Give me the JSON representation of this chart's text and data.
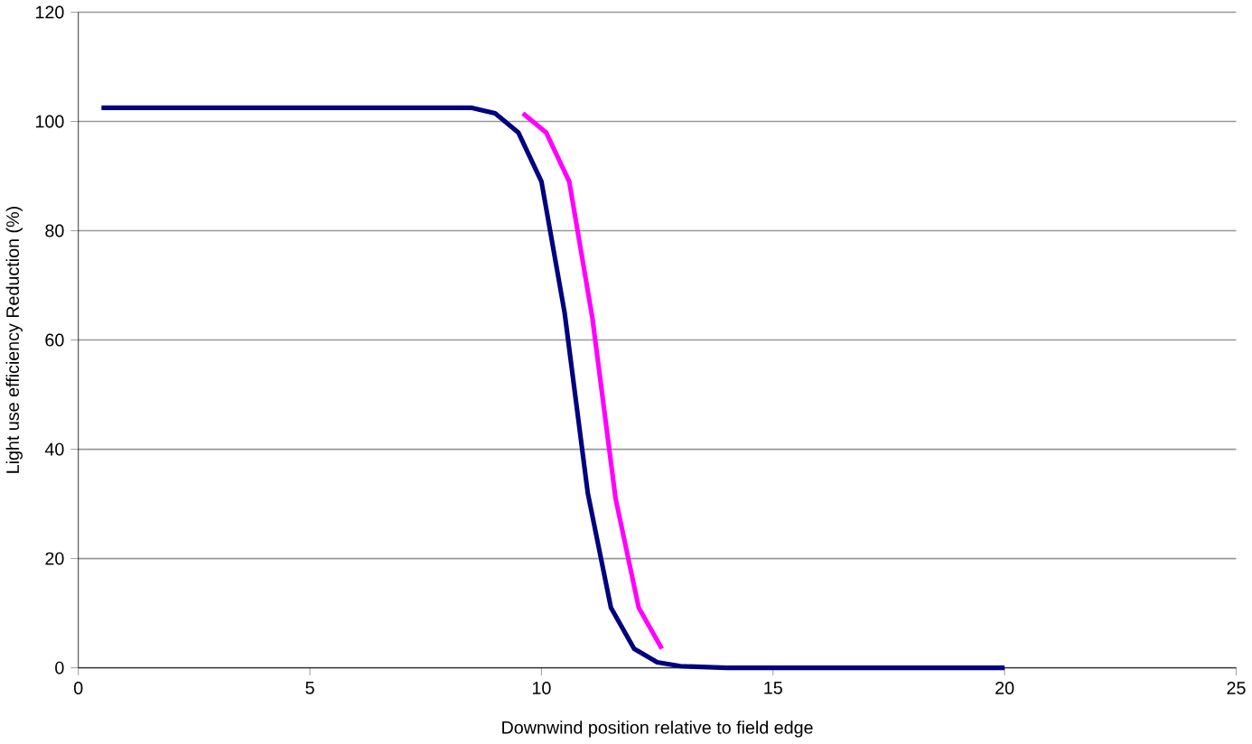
{
  "chart_data": {
    "type": "line",
    "xlabel": "Downwind position relative to field edge",
    "ylabel": "Light use efficiency Reduction (%)",
    "xlim": [
      0,
      25
    ],
    "xticks": [
      0,
      5,
      10,
      15,
      20,
      25
    ],
    "ylim": [
      0,
      120
    ],
    "yticks": [
      0,
      20,
      40,
      60,
      80,
      100,
      120
    ],
    "grid": "y",
    "marker": "none",
    "line_style": "solid",
    "series": [
      {
        "color": "#ff00ff",
        "x": [
          9.6,
          10.1,
          10.6,
          11.1,
          11.6,
          12.1,
          12.6
        ],
        "values": [
          101.5,
          98,
          89,
          64,
          31,
          11,
          3.5
        ]
      },
      {
        "color": "#000080",
        "x": [
          0.5,
          2,
          4,
          6,
          8,
          8.5,
          9,
          9.5,
          10,
          10.5,
          11,
          11.5,
          12,
          12.5,
          13,
          14,
          17,
          20
        ],
        "values": [
          102.5,
          102.5,
          102.5,
          102.5,
          102.5,
          102.5,
          101.5,
          98,
          89,
          65,
          32,
          11,
          3.5,
          1,
          0.3,
          0,
          0,
          0
        ]
      }
    ]
  }
}
